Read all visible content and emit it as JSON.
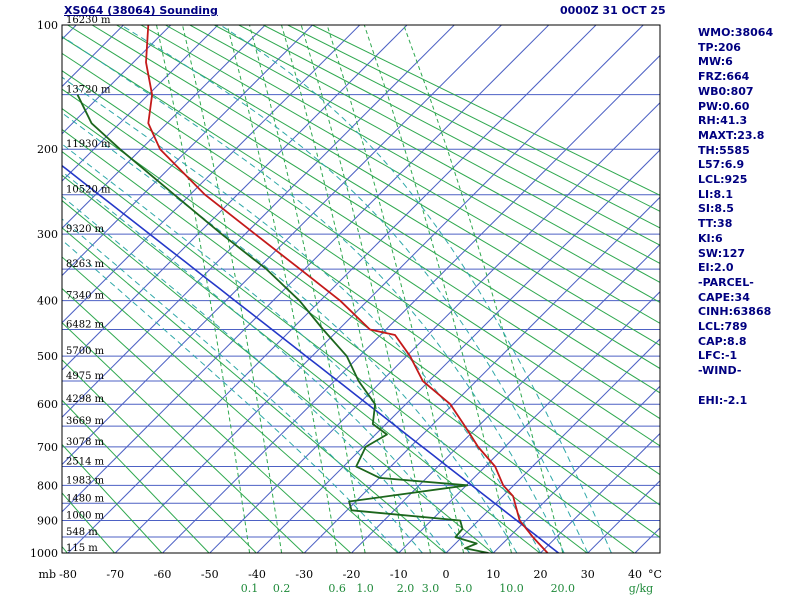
{
  "header": {
    "title": "XS064 (38064) Sounding",
    "datetime": "0000Z 31 OCT 25"
  },
  "stats_panel": {
    "lines": [
      "WMO:38064",
      "TP:206",
      "MW:6",
      "FRZ:664",
      "WB0:807",
      "PW:0.60",
      "RH:41.3",
      "MAXT:23.8",
      "TH:5585",
      "L57:6.9",
      "LCL:925",
      "LI:8.1",
      "SI:8.5",
      "TT:38",
      "KI:6",
      "SW:127",
      "EI:2.0",
      "-PARCEL-",
      "CAPE:34",
      "CINH:63868",
      "LCL:789",
      "CAP:8.8",
      "LFC:-1",
      "-WIND-",
      "",
      "EHI:-2.1"
    ]
  },
  "chart_data": {
    "type": "line",
    "diagram": "stuve_sounding",
    "pressure_axis": {
      "unit_label": "mb",
      "labels": [
        100,
        200,
        300,
        400,
        500,
        600,
        700,
        800,
        900,
        1000
      ],
      "grid_lines_mb": [
        100,
        150,
        200,
        250,
        300,
        350,
        400,
        450,
        500,
        550,
        600,
        650,
        700,
        750,
        800,
        850,
        900,
        950,
        1000
      ]
    },
    "temperature_axis": {
      "unit_label": "°C",
      "labels": [
        -80,
        -70,
        -60,
        -50,
        -40,
        -30,
        -20,
        -10,
        0,
        10,
        20,
        30,
        40
      ]
    },
    "height_labels": [
      {
        "mb": 100,
        "label": "16230 m"
      },
      {
        "mb": 150,
        "label": "13720 m"
      },
      {
        "mb": 200,
        "label": "11930 m"
      },
      {
        "mb": 250,
        "label": "10520 m"
      },
      {
        "mb": 300,
        "label": "9320 m"
      },
      {
        "mb": 350,
        "label": "8263 m"
      },
      {
        "mb": 400,
        "label": "7340 m"
      },
      {
        "mb": 450,
        "label": "6482 m"
      },
      {
        "mb": 500,
        "label": "5700 m"
      },
      {
        "mb": 550,
        "label": "4975 m"
      },
      {
        "mb": 600,
        "label": "4298 m"
      },
      {
        "mb": 650,
        "label": "3669 m"
      },
      {
        "mb": 700,
        "label": "3078 m"
      },
      {
        "mb": 750,
        "label": "2514 m"
      },
      {
        "mb": 800,
        "label": "1983 m"
      },
      {
        "mb": 850,
        "label": "1480 m"
      },
      {
        "mb": 900,
        "label": "1000 m"
      },
      {
        "mb": 950,
        "label": "548 m"
      },
      {
        "mb": 1000,
        "label": "115 m"
      }
    ],
    "mixing_ratio": {
      "unit_label": "g/kg",
      "values": [
        0.1,
        0.2,
        0.6,
        1.0,
        2.0,
        3.0,
        5.0,
        10.0,
        20.0
      ],
      "labels": [
        "0.1",
        "0.2",
        "0.6",
        "1.0",
        "2.0",
        "3.0",
        "5.0",
        "10.0",
        "20.0"
      ]
    },
    "grid": {
      "isotherms": {
        "min_c": -200,
        "max_c": 80,
        "step_c": 10
      },
      "dry_adiabats": {
        "theta_k_min": 193,
        "theta_k_max": 473,
        "theta_k_step": 10
      },
      "moist_adiabats_thetaw_c": [
        -10,
        -5,
        0,
        5,
        10,
        15,
        20,
        25,
        30,
        35
      ]
    },
    "series": {
      "temperature": {
        "name": "temperature",
        "points_mb_c": [
          [
            1000,
            21.5
          ],
          [
            950,
            18.4
          ],
          [
            900,
            15.6
          ],
          [
            850,
            14.6
          ],
          [
            830,
            14.2
          ],
          [
            800,
            12.1
          ],
          [
            750,
            10.4
          ],
          [
            700,
            6.8
          ],
          [
            650,
            4.0
          ],
          [
            600,
            0.9
          ],
          [
            550,
            -4.9
          ],
          [
            500,
            -7.6
          ],
          [
            460,
            -10.8
          ],
          [
            450,
            -16.1
          ],
          [
            400,
            -22.4
          ],
          [
            350,
            -30.9
          ],
          [
            300,
            -40.4
          ],
          [
            250,
            -51.0
          ],
          [
            200,
            -60.5
          ],
          [
            175,
            -63.0
          ],
          [
            150,
            -62.2
          ],
          [
            125,
            -63.5
          ],
          [
            100,
            -63.0
          ]
        ]
      },
      "dewpoint": {
        "name": "dewpoint",
        "points_mb_c": [
          [
            1000,
            9.0
          ],
          [
            985,
            4.0
          ],
          [
            970,
            6.5
          ],
          [
            950,
            2.0
          ],
          [
            925,
            3.5
          ],
          [
            900,
            3.0
          ],
          [
            870,
            -20.0
          ],
          [
            845,
            -20.5
          ],
          [
            800,
            4.5
          ],
          [
            780,
            -14.0
          ],
          [
            750,
            -19.0
          ],
          [
            700,
            -17.0
          ],
          [
            670,
            -12.5
          ],
          [
            645,
            -15.5
          ],
          [
            600,
            -15.0
          ],
          [
            550,
            -18.5
          ],
          [
            500,
            -21.0
          ],
          [
            450,
            -26.0
          ],
          [
            400,
            -31.0
          ],
          [
            350,
            -38.0
          ],
          [
            300,
            -47.5
          ],
          [
            250,
            -57.5
          ],
          [
            200,
            -69.0
          ],
          [
            175,
            -75.0
          ],
          [
            150,
            -78.0
          ]
        ]
      },
      "parcel": {
        "name": "parcel",
        "surface_mb": 1000,
        "surface_temp_c": 23.8
      }
    },
    "colors": {
      "grid_blue": "#4d61c4",
      "dry_adiabat_green": "#2fa84f",
      "mixing_ratio_green": "#2fa84f",
      "moist_adiabat_teal": "#2fa8a8",
      "temperature_red": "#c41a1a",
      "dewpoint_dark_green": "#1c661c",
      "parcel_blue": "#2438c8",
      "frame_black": "#000000",
      "navy_text": "#000080"
    }
  }
}
